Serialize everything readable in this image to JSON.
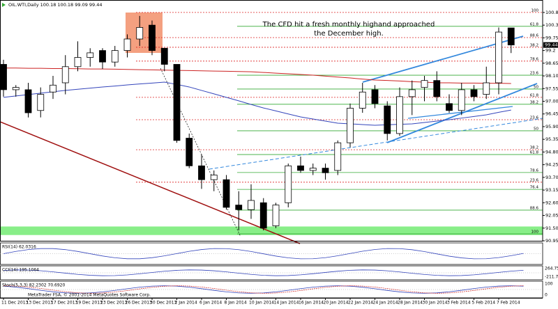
{
  "chart_data": {
    "type": "candlestick",
    "title": "OIL.WTI,Daily 100.18 100.18 99.09 99.44",
    "annotation": [
      "The CFD hit a fresh monthly highand approached",
      "the December high."
    ],
    "categories": [
      "11 Dec 2013",
      null,
      "13 Dec 2013",
      null,
      "17 Dec 2013",
      null,
      "19 Dec 2013",
      null,
      "23 Dec 2013",
      null,
      "26 Dec 2013",
      null,
      "30 Dec 2013",
      null,
      "2 Jan 2014",
      null,
      "6 Jan 2014",
      null,
      "8 Jan 2014",
      null,
      "10 Jan 2014",
      null,
      "14 Jan 2014",
      null,
      "16 Jan 2014",
      null,
      "20 Jan 2014",
      null,
      "22 Jan 2014",
      null,
      "24 Jan 2014",
      null,
      "28 Jan 2014",
      null,
      "30 Jan 2014",
      null,
      "3 Feb 2014",
      null,
      "5 Feb 2014",
      null,
      "7 Feb 2014",
      null
    ],
    "open": [
      98.6,
      97.5,
      97.5,
      96.6,
      97.4,
      97.8,
      98.5,
      98.9,
      99.2,
      98.7,
      99.2,
      99.7,
      100.3,
      99.3,
      98.6,
      95.4,
      94.2,
      93.6,
      93.6,
      92.5,
      92.3,
      92.6,
      91.6,
      92.6,
      94.2,
      94.0,
      94.1,
      94.0,
      95.2,
      96.7,
      97.5,
      96.8,
      95.6,
      97.2,
      97.6,
      97.9,
      96.9,
      96.6,
      97.5,
      97.3,
      97.8,
      100.18
    ],
    "high": [
      98.8,
      97.7,
      97.8,
      97.6,
      98.1,
      99.0,
      99.6,
      99.3,
      99.3,
      99.4,
      99.9,
      100.7,
      100.5,
      99.3,
      98.6,
      95.6,
      94.7,
      94.0,
      93.8,
      93.1,
      93.4,
      92.8,
      92.6,
      94.3,
      94.6,
      94.3,
      94.3,
      95.3,
      96.9,
      97.8,
      97.7,
      97.0,
      97.6,
      97.9,
      98.1,
      98.3,
      97.3,
      97.8,
      97.7,
      98.5,
      100.2,
      100.18
    ],
    "low": [
      97.2,
      97.2,
      96.3,
      96.3,
      97.1,
      97.3,
      98.3,
      98.5,
      98.4,
      98.5,
      98.9,
      99.4,
      99.0,
      98.3,
      95.2,
      94.1,
      93.2,
      93.1,
      92.3,
      91.4,
      91.9,
      91.4,
      91.5,
      92.4,
      93.9,
      93.8,
      93.6,
      93.8,
      95.0,
      96.5,
      96.7,
      95.3,
      95.5,
      96.4,
      97.0,
      97.0,
      96.5,
      96.4,
      97.0,
      97.1,
      97.3,
      99.09
    ],
    "close": [
      97.5,
      97.6,
      96.5,
      97.3,
      97.7,
      98.5,
      98.9,
      99.1,
      98.7,
      99.2,
      99.7,
      100.2,
      99.2,
      98.6,
      95.3,
      94.2,
      93.6,
      93.8,
      92.4,
      92.3,
      92.7,
      91.5,
      92.5,
      94.2,
      94.0,
      94.1,
      93.9,
      95.2,
      96.7,
      97.4,
      96.9,
      95.6,
      97.2,
      97.5,
      97.9,
      97.2,
      96.6,
      97.5,
      97.2,
      97.8,
      100.0,
      99.44
    ],
    "up_color": "#ffffff",
    "down_color": "#000000",
    "lines": [
      {
        "color": "#cc2222",
        "values": [
          98.44,
          98.44,
          98.43,
          98.43,
          98.42,
          98.42,
          98.41,
          98.4,
          98.4,
          98.39,
          98.38,
          98.37,
          98.36,
          98.35,
          98.34,
          98.33,
          98.32,
          98.31,
          98.3,
          98.29,
          98.28,
          98.25,
          98.22,
          98.19,
          98.16,
          98.13,
          98.09,
          98.05,
          98.01,
          97.96,
          97.92,
          97.9,
          97.88,
          97.85,
          97.83,
          97.8,
          97.8,
          97.79,
          97.79,
          97.78,
          97.78,
          97.77
        ]
      },
      {
        "color": "#3344bb",
        "values": [
          97.17,
          97.23,
          97.29,
          97.35,
          97.41,
          97.47,
          97.52,
          97.57,
          97.62,
          97.66,
          97.71,
          97.75,
          97.79,
          97.83,
          97.73,
          97.62,
          97.47,
          97.32,
          97.17,
          97.02,
          96.86,
          96.71,
          96.58,
          96.45,
          96.32,
          96.23,
          96.14,
          96.05,
          96.02,
          95.99,
          95.96,
          95.98,
          96.0,
          96.02,
          96.08,
          96.14,
          96.2,
          96.27,
          96.34,
          96.41,
          96.52,
          96.62
        ]
      }
    ],
    "levels": [
      {
        "value": 100.85,
        "label": "100",
        "color": "#dd2222"
      },
      {
        "value": 100.25,
        "label": "61.8",
        "color": "#33aa33"
      },
      {
        "value": 99.76,
        "label": "88.6",
        "color": "#dd2222"
      },
      {
        "value": 99.34,
        "label": "38.2",
        "color": "#dd2222"
      },
      {
        "value": 98.74,
        "label": "78.6",
        "color": "#dd2222"
      },
      {
        "value": 98.13,
        "label": "23.6",
        "color": "#33aa33"
      },
      {
        "value": 97.53,
        "label": "50",
        "color": "#33aa33"
      },
      {
        "value": 97.17,
        "label": "61.8",
        "color": "#dd2222"
      },
      {
        "value": 96.87,
        "label": "38.2",
        "color": "#33aa33"
      },
      {
        "value": 96.2,
        "label": "23.6",
        "color": "#dd2222"
      },
      {
        "value": 95.72,
        "label": "50",
        "color": "#33aa33"
      },
      {
        "value": 94.9,
        "label": "38.2",
        "color": "#dd2222"
      },
      {
        "value": 94.69,
        "label": "61.8",
        "color": "#33aa33"
      },
      {
        "value": 93.91,
        "label": "78.6",
        "color": "#33aa33"
      },
      {
        "value": 93.49,
        "label": "23.6",
        "color": "#dd2222"
      },
      {
        "value": 93.18,
        "label": "76.4",
        "color": "#33aa33"
      },
      {
        "value": 92.28,
        "label": "88.6",
        "color": "#33aa33"
      },
      {
        "value": 91.25,
        "label": "100",
        "color": "#33aa33"
      }
    ],
    "zone": [
      91.2,
      91.57
    ],
    "zone_color": "#88ee88",
    "ylim": [
      90.98,
      101.33
    ],
    "yticks": [
      100.85,
      {
        "value": 100.3,
        "label": "100.30"
      },
      99.75,
      99.2,
      98.65,
      {
        "value": 98.1,
        "label": "98.10"
      },
      97.55,
      {
        "value": 97,
        "label": "97.00"
      },
      96.45,
      {
        "value": 95.9,
        "label": "95.90"
      },
      95.35,
      {
        "value": 94.8,
        "label": "94.80"
      },
      94.25,
      {
        "value": 93.7,
        "label": "93.70"
      },
      93.15,
      {
        "value": 92.6,
        "label": "92.60"
      },
      92.05,
      {
        "value": 91.5,
        "label": "91.50"
      },
      90.95
    ],
    "indicators": [
      {
        "label": "RSI(14) 62.0316",
        "ticks": []
      },
      {
        "label": "CCI(14) 195.1064",
        "ticks": [
          264.7513,
          -211.793
        ]
      },
      {
        "label": "Stoch(5,3,3) 82.2302 70.6920",
        "ticks": [
          100,
          0
        ]
      }
    ],
    "footer": "MetaTrader FSA, © 2001-2014 MetaQuotes Software Corp."
  }
}
